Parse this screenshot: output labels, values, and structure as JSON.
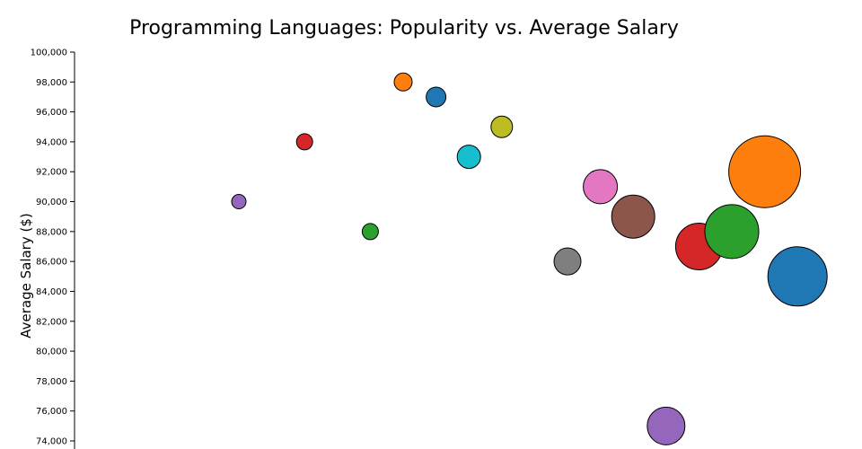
{
  "chart_data": {
    "type": "scatter",
    "title": "Programming Languages: Popularity vs. Average Salary",
    "xlabel": "",
    "ylabel": "Average Salary ($)",
    "ylim": [
      74000,
      100000
    ],
    "y_ticks": [
      "74,000",
      "76,000",
      "78,000",
      "80,000",
      "82,000",
      "84,000",
      "86,000",
      "88,000",
      "90,000",
      "92,000",
      "94,000",
      "96,000",
      "98,000",
      "100,000"
    ],
    "grid": false,
    "legend": "none",
    "points": [
      {
        "x": 5,
        "y": 90000,
        "size": 8,
        "color": "#9467bd"
      },
      {
        "x": 7,
        "y": 94000,
        "size": 9,
        "color": "#d62728"
      },
      {
        "x": 9,
        "y": 88000,
        "size": 9,
        "color": "#2ca02c"
      },
      {
        "x": 10,
        "y": 98000,
        "size": 10,
        "color": "#ff7f0e"
      },
      {
        "x": 11,
        "y": 97000,
        "size": 11,
        "color": "#1f77b4"
      },
      {
        "x": 12,
        "y": 93000,
        "size": 13,
        "color": "#17becf"
      },
      {
        "x": 13,
        "y": 95000,
        "size": 12,
        "color": "#bcbd22"
      },
      {
        "x": 15,
        "y": 86000,
        "size": 15,
        "color": "#7f7f7f"
      },
      {
        "x": 16,
        "y": 91000,
        "size": 19,
        "color": "#e377c2"
      },
      {
        "x": 17,
        "y": 89000,
        "size": 24,
        "color": "#8c564b"
      },
      {
        "x": 18,
        "y": 75000,
        "size": 21,
        "color": "#9467bd"
      },
      {
        "x": 19,
        "y": 87000,
        "size": 26,
        "color": "#d62728"
      },
      {
        "x": 20,
        "y": 88000,
        "size": 30,
        "color": "#2ca02c"
      },
      {
        "x": 21,
        "y": 92000,
        "size": 40,
        "color": "#ff7f0e"
      },
      {
        "x": 22,
        "y": 85000,
        "size": 33,
        "color": "#1f77b4"
      }
    ]
  }
}
